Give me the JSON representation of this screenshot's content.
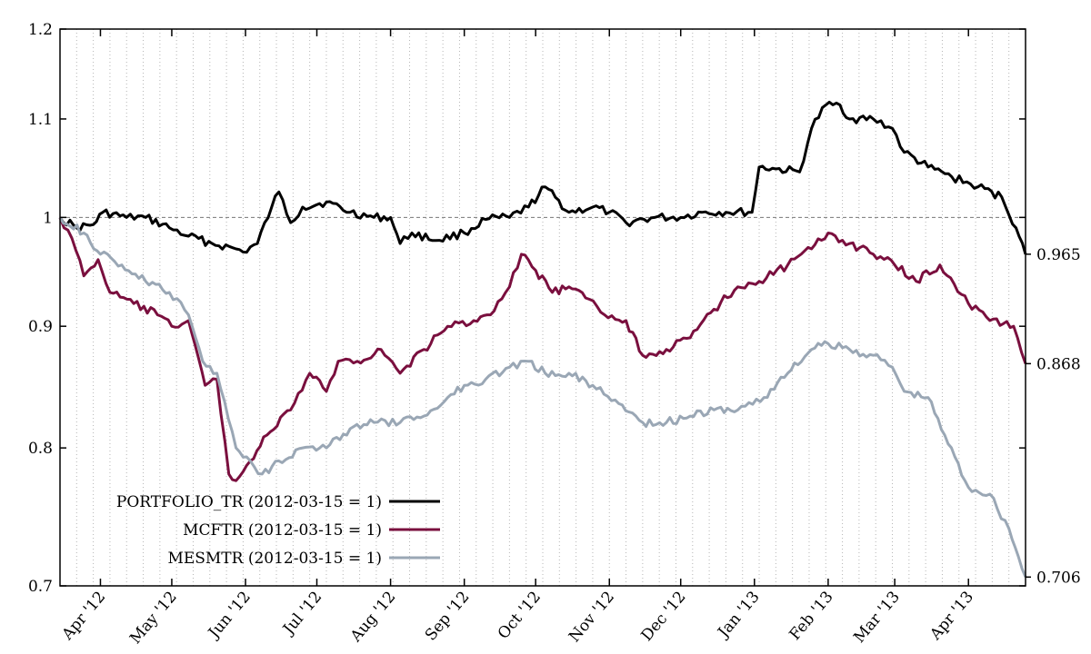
{
  "chart_data": {
    "type": "line",
    "y_scale": "log",
    "ylim": [
      0.7,
      1.2
    ],
    "xlim": [
      "2012-03-15",
      "2013-04-25"
    ],
    "y_ticks": [
      {
        "value": 1.2,
        "label": "1.2"
      },
      {
        "value": 1.1,
        "label": "1.1"
      },
      {
        "value": 1.0,
        "label": "1"
      },
      {
        "value": 0.9,
        "label": "0.9"
      },
      {
        "value": 0.8,
        "label": "0.8"
      },
      {
        "value": 0.7,
        "label": "0.7"
      }
    ],
    "x_ticks": [
      {
        "date": "2012-04-01",
        "label": "Apr '12"
      },
      {
        "date": "2012-05-01",
        "label": "May '12"
      },
      {
        "date": "2012-06-01",
        "label": "Jun '12"
      },
      {
        "date": "2012-07-01",
        "label": "Jul '12"
      },
      {
        "date": "2012-08-01",
        "label": "Aug '12"
      },
      {
        "date": "2012-09-01",
        "label": "Sep '12"
      },
      {
        "date": "2012-10-01",
        "label": "Oct '12"
      },
      {
        "date": "2012-11-01",
        "label": "Nov '12"
      },
      {
        "date": "2012-12-01",
        "label": "Dec '12"
      },
      {
        "date": "2013-01-01",
        "label": "Jan '13"
      },
      {
        "date": "2013-02-01",
        "label": "Feb '13"
      },
      {
        "date": "2013-03-01",
        "label": "Mar '13"
      },
      {
        "date": "2013-04-01",
        "label": "Apr '13"
      }
    ],
    "reference_line": 1.0,
    "grid": "vertical-dotted-weekly",
    "legend_position": "bottom-left",
    "series": [
      {
        "name": "PORTFOLIO_TR (2012-03-15 = 1)",
        "color": "#000000",
        "end_label": "0.965",
        "points": [
          [
            "2012-03-15",
            1.0
          ],
          [
            "2012-03-22",
            0.99
          ],
          [
            "2012-03-29",
            0.993
          ],
          [
            "2012-04-02",
            1.005
          ],
          [
            "2012-04-12",
            1.0
          ],
          [
            "2012-04-20",
            1.0
          ],
          [
            "2012-04-30",
            0.99
          ],
          [
            "2012-05-08",
            0.982
          ],
          [
            "2012-05-18",
            0.975
          ],
          [
            "2012-05-28",
            0.97
          ],
          [
            "2012-05-31",
            0.967
          ],
          [
            "2012-06-06",
            0.975
          ],
          [
            "2012-06-12",
            1.01
          ],
          [
            "2012-06-15",
            1.025
          ],
          [
            "2012-06-20",
            0.995
          ],
          [
            "2012-06-25",
            1.01
          ],
          [
            "2012-07-05",
            1.015
          ],
          [
            "2012-07-15",
            1.005
          ],
          [
            "2012-07-25",
            1.0
          ],
          [
            "2012-08-01",
            1.0
          ],
          [
            "2012-08-05",
            0.975
          ],
          [
            "2012-08-10",
            0.985
          ],
          [
            "2012-08-20",
            0.978
          ],
          [
            "2012-09-01",
            0.985
          ],
          [
            "2012-09-10",
            0.998
          ],
          [
            "2012-09-20",
            1.0
          ],
          [
            "2012-09-28",
            1.01
          ],
          [
            "2012-10-05",
            1.03
          ],
          [
            "2012-10-15",
            1.005
          ],
          [
            "2012-10-25",
            1.01
          ],
          [
            "2012-11-01",
            1.005
          ],
          [
            "2012-11-08",
            0.995
          ],
          [
            "2012-11-20",
            1.0
          ],
          [
            "2012-12-01",
            1.0
          ],
          [
            "2012-12-10",
            1.005
          ],
          [
            "2012-12-20",
            1.005
          ],
          [
            "2012-12-31",
            1.005
          ],
          [
            "2013-01-03",
            1.05
          ],
          [
            "2013-01-10",
            1.048
          ],
          [
            "2013-01-20",
            1.045
          ],
          [
            "2013-01-25",
            1.09
          ],
          [
            "2013-01-31",
            1.115
          ],
          [
            "2013-02-06",
            1.115
          ],
          [
            "2013-02-10",
            1.1
          ],
          [
            "2013-02-20",
            1.1
          ],
          [
            "2013-02-28",
            1.09
          ],
          [
            "2013-03-05",
            1.065
          ],
          [
            "2013-03-15",
            1.05
          ],
          [
            "2013-03-25",
            1.04
          ],
          [
            "2013-04-05",
            1.03
          ],
          [
            "2013-04-15",
            1.02
          ],
          [
            "2013-04-21",
            0.99
          ],
          [
            "2013-04-25",
            0.965
          ]
        ]
      },
      {
        "name": "MCFTR (2012-03-15 = 1)",
        "color": "#7a0f3e",
        "end_label": "0.868",
        "points": [
          [
            "2012-03-15",
            1.0
          ],
          [
            "2012-03-20",
            0.98
          ],
          [
            "2012-03-25",
            0.945
          ],
          [
            "2012-03-31",
            0.96
          ],
          [
            "2012-04-05",
            0.93
          ],
          [
            "2012-04-15",
            0.92
          ],
          [
            "2012-04-25",
            0.91
          ],
          [
            "2012-05-01",
            0.9
          ],
          [
            "2012-05-08",
            0.905
          ],
          [
            "2012-05-15",
            0.85
          ],
          [
            "2012-05-20",
            0.855
          ],
          [
            "2012-05-25",
            0.78
          ],
          [
            "2012-05-28",
            0.775
          ],
          [
            "2012-06-03",
            0.79
          ],
          [
            "2012-06-10",
            0.81
          ],
          [
            "2012-06-20",
            0.83
          ],
          [
            "2012-06-28",
            0.86
          ],
          [
            "2012-07-05",
            0.845
          ],
          [
            "2012-07-10",
            0.87
          ],
          [
            "2012-07-18",
            0.87
          ],
          [
            "2012-07-28",
            0.88
          ],
          [
            "2012-08-05",
            0.86
          ],
          [
            "2012-08-15",
            0.88
          ],
          [
            "2012-08-25",
            0.9
          ],
          [
            "2012-09-05",
            0.905
          ],
          [
            "2012-09-12",
            0.91
          ],
          [
            "2012-09-20",
            0.935
          ],
          [
            "2012-09-25",
            0.965
          ],
          [
            "2012-10-01",
            0.95
          ],
          [
            "2012-10-08",
            0.93
          ],
          [
            "2012-10-15",
            0.935
          ],
          [
            "2012-10-22",
            0.925
          ],
          [
            "2012-10-30",
            0.91
          ],
          [
            "2012-11-08",
            0.905
          ],
          [
            "2012-11-15",
            0.875
          ],
          [
            "2012-11-25",
            0.88
          ],
          [
            "2012-12-05",
            0.89
          ],
          [
            "2012-12-15",
            0.915
          ],
          [
            "2012-12-25",
            0.935
          ],
          [
            "2013-01-03",
            0.94
          ],
          [
            "2013-01-15",
            0.955
          ],
          [
            "2013-01-25",
            0.97
          ],
          [
            "2013-02-01",
            0.985
          ],
          [
            "2013-02-10",
            0.975
          ],
          [
            "2013-02-20",
            0.965
          ],
          [
            "2013-03-01",
            0.955
          ],
          [
            "2013-03-10",
            0.94
          ],
          [
            "2013-03-20",
            0.955
          ],
          [
            "2013-04-01",
            0.92
          ],
          [
            "2013-04-10",
            0.905
          ],
          [
            "2013-04-20",
            0.9
          ],
          [
            "2013-04-25",
            0.868
          ]
        ]
      },
      {
        "name": "MESMTR (2012-03-15 = 1)",
        "color": "#9aa7b5",
        "end_label": "0.706",
        "points": [
          [
            "2012-03-15",
            1.0
          ],
          [
            "2012-03-25",
            0.985
          ],
          [
            "2012-04-01",
            0.965
          ],
          [
            "2012-04-10",
            0.955
          ],
          [
            "2012-04-20",
            0.94
          ],
          [
            "2012-04-30",
            0.93
          ],
          [
            "2012-05-08",
            0.91
          ],
          [
            "2012-05-14",
            0.87
          ],
          [
            "2012-05-20",
            0.86
          ],
          [
            "2012-05-28",
            0.8
          ],
          [
            "2012-06-03",
            0.79
          ],
          [
            "2012-06-08",
            0.78
          ],
          [
            "2012-06-15",
            0.79
          ],
          [
            "2012-06-25",
            0.8
          ],
          [
            "2012-07-05",
            0.8
          ],
          [
            "2012-07-15",
            0.815
          ],
          [
            "2012-07-25",
            0.82
          ],
          [
            "2012-08-05",
            0.82
          ],
          [
            "2012-08-15",
            0.825
          ],
          [
            "2012-08-25",
            0.84
          ],
          [
            "2012-09-01",
            0.85
          ],
          [
            "2012-09-10",
            0.855
          ],
          [
            "2012-09-20",
            0.865
          ],
          [
            "2012-09-28",
            0.87
          ],
          [
            "2012-10-05",
            0.86
          ],
          [
            "2012-10-15",
            0.86
          ],
          [
            "2012-10-25",
            0.85
          ],
          [
            "2012-11-05",
            0.835
          ],
          [
            "2012-11-15",
            0.82
          ],
          [
            "2012-11-25",
            0.82
          ],
          [
            "2012-12-05",
            0.825
          ],
          [
            "2012-12-15",
            0.83
          ],
          [
            "2012-12-25",
            0.83
          ],
          [
            "2013-01-05",
            0.84
          ],
          [
            "2013-01-15",
            0.86
          ],
          [
            "2013-01-25",
            0.88
          ],
          [
            "2013-02-01",
            0.885
          ],
          [
            "2013-02-10",
            0.88
          ],
          [
            "2013-02-20",
            0.875
          ],
          [
            "2013-02-28",
            0.865
          ],
          [
            "2013-03-05",
            0.845
          ],
          [
            "2013-03-15",
            0.84
          ],
          [
            "2013-03-22",
            0.81
          ],
          [
            "2013-04-01",
            0.77
          ],
          [
            "2013-04-10",
            0.765
          ],
          [
            "2013-04-18",
            0.74
          ],
          [
            "2013-04-22",
            0.72
          ],
          [
            "2013-04-25",
            0.706
          ]
        ]
      }
    ]
  }
}
